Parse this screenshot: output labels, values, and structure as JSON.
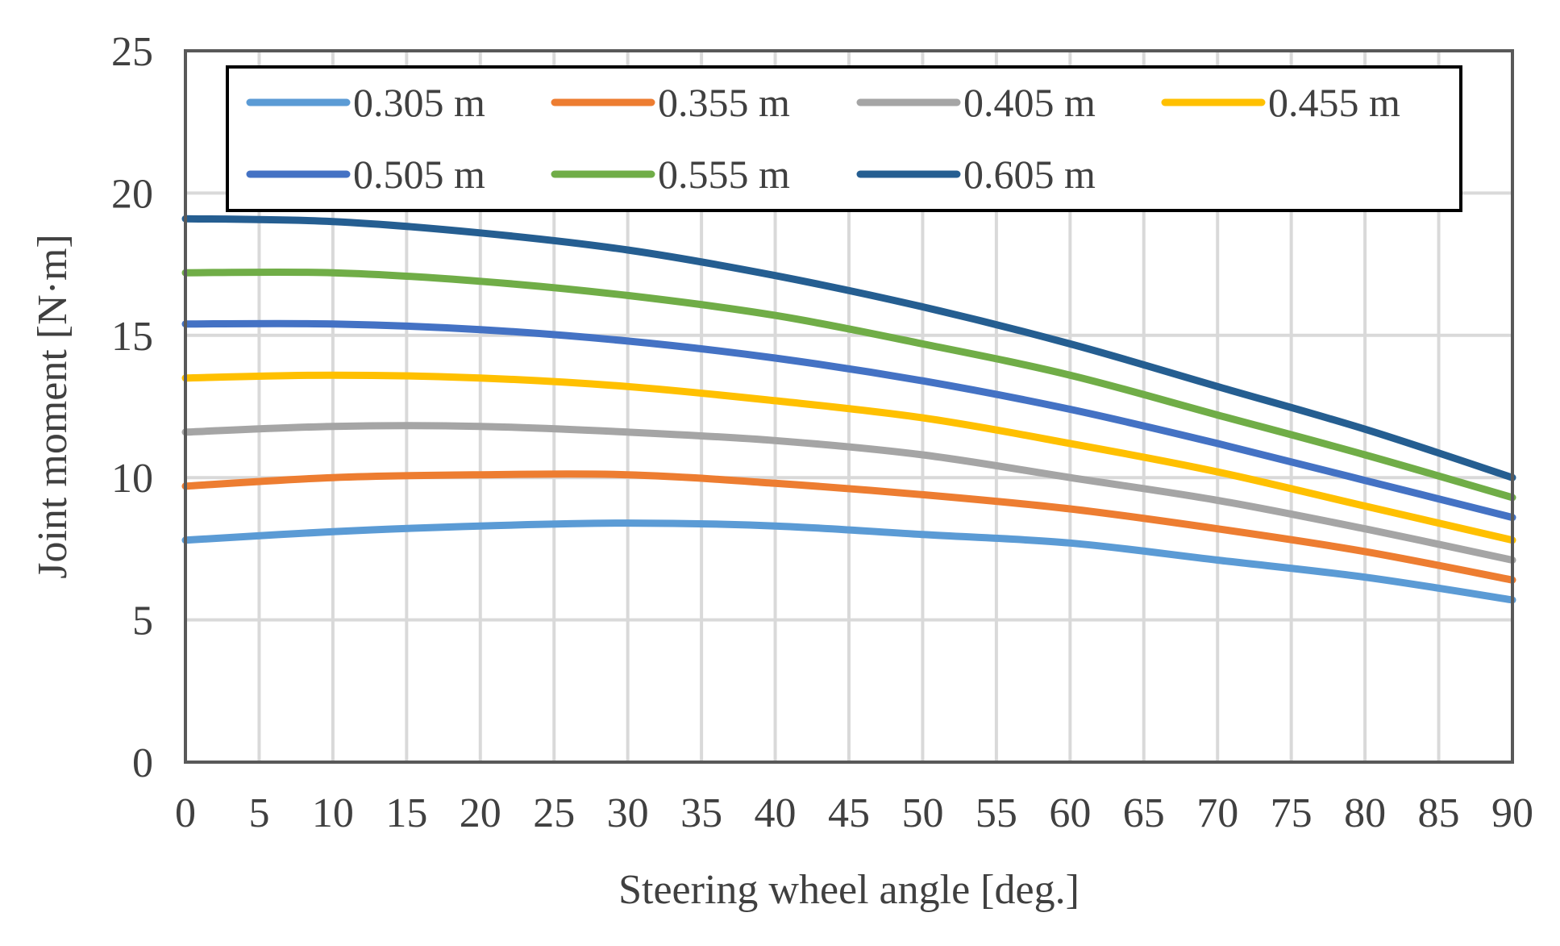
{
  "chart_data": {
    "type": "line",
    "title": "",
    "xlabel": "Steering wheel angle [deg.]",
    "ylabel": "Joint moment [N·m]",
    "xlim": [
      0,
      90
    ],
    "ylim": [
      0,
      25
    ],
    "x_ticks": [
      0,
      5,
      10,
      15,
      20,
      25,
      30,
      35,
      40,
      45,
      50,
      55,
      60,
      65,
      70,
      75,
      80,
      85,
      90
    ],
    "y_ticks": [
      0,
      5,
      10,
      15,
      20,
      25
    ],
    "grid": true,
    "legend_position": "top",
    "x": [
      0,
      10,
      20,
      30,
      40,
      50,
      60,
      70,
      80,
      90
    ],
    "series": [
      {
        "name": "0.305 m",
        "color": "#5B9BD5",
        "values": [
          7.8,
          8.1,
          8.3,
          8.4,
          8.3,
          8.0,
          7.7,
          7.1,
          6.5,
          5.7
        ]
      },
      {
        "name": "0.355 m",
        "color": "#ED7D31",
        "values": [
          9.7,
          10.0,
          10.1,
          10.1,
          9.8,
          9.4,
          8.9,
          8.2,
          7.4,
          6.4
        ]
      },
      {
        "name": "0.405 m",
        "color": "#A5A5A5",
        "values": [
          11.6,
          11.8,
          11.8,
          11.6,
          11.3,
          10.8,
          10.0,
          9.2,
          8.2,
          7.1
        ]
      },
      {
        "name": "0.455 m",
        "color": "#FFC000",
        "values": [
          13.5,
          13.6,
          13.5,
          13.2,
          12.7,
          12.1,
          11.2,
          10.2,
          9.0,
          7.8
        ]
      },
      {
        "name": "0.505 m",
        "color": "#4472C4",
        "values": [
          15.4,
          15.4,
          15.2,
          14.8,
          14.2,
          13.4,
          12.4,
          11.2,
          9.9,
          8.6
        ]
      },
      {
        "name": "0.555 m",
        "color": "#70AD47",
        "values": [
          17.2,
          17.2,
          16.9,
          16.4,
          15.7,
          14.7,
          13.6,
          12.2,
          10.8,
          9.3
        ]
      },
      {
        "name": "0.605 m",
        "color": "#255E91",
        "values": [
          19.1,
          19.0,
          18.6,
          18.0,
          17.1,
          16.0,
          14.7,
          13.2,
          11.7,
          10.0
        ]
      }
    ]
  }
}
